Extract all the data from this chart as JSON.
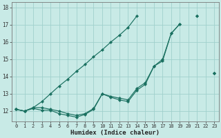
{
  "xlabel": "Humidex (Indice chaleur)",
  "background_color": "#c8eae6",
  "grid_color": "#a0d0cc",
  "line_color": "#1a7060",
  "x": [
    0,
    1,
    2,
    3,
    4,
    5,
    6,
    7,
    8,
    9,
    10,
    11,
    12,
    13,
    14,
    15,
    16,
    17,
    18,
    19,
    20,
    21,
    22,
    23
  ],
  "line_straight": [
    12.1,
    12.0,
    12.2,
    12.55,
    13.0,
    13.45,
    13.85,
    14.3,
    14.7,
    15.15,
    15.55,
    16.0,
    16.4,
    16.85,
    17.5,
    null,
    null,
    null,
    null,
    null,
    null,
    null,
    null,
    14.2
  ],
  "line_mid": [
    12.1,
    12.0,
    12.2,
    12.2,
    12.1,
    12.0,
    11.85,
    11.75,
    11.85,
    12.15,
    13.0,
    12.85,
    12.75,
    12.65,
    13.3,
    13.65,
    14.6,
    15.0,
    16.5,
    17.05,
    null,
    17.5,
    null,
    14.2
  ],
  "line_low": [
    12.1,
    12.0,
    12.15,
    12.05,
    12.05,
    11.85,
    11.75,
    11.65,
    11.8,
    12.1,
    13.0,
    12.8,
    12.65,
    12.55,
    13.2,
    13.55,
    14.6,
    14.9,
    16.5,
    17.05,
    null,
    17.5,
    null,
    14.2
  ],
  "xlim": [
    -0.5,
    23.5
  ],
  "ylim": [
    11.4,
    18.3
  ],
  "yticks": [
    12,
    13,
    14,
    15,
    16,
    17,
    18
  ],
  "xticks": [
    0,
    1,
    2,
    3,
    4,
    5,
    6,
    7,
    8,
    9,
    10,
    11,
    12,
    13,
    14,
    15,
    16,
    17,
    18,
    19,
    20,
    21,
    22,
    23
  ]
}
